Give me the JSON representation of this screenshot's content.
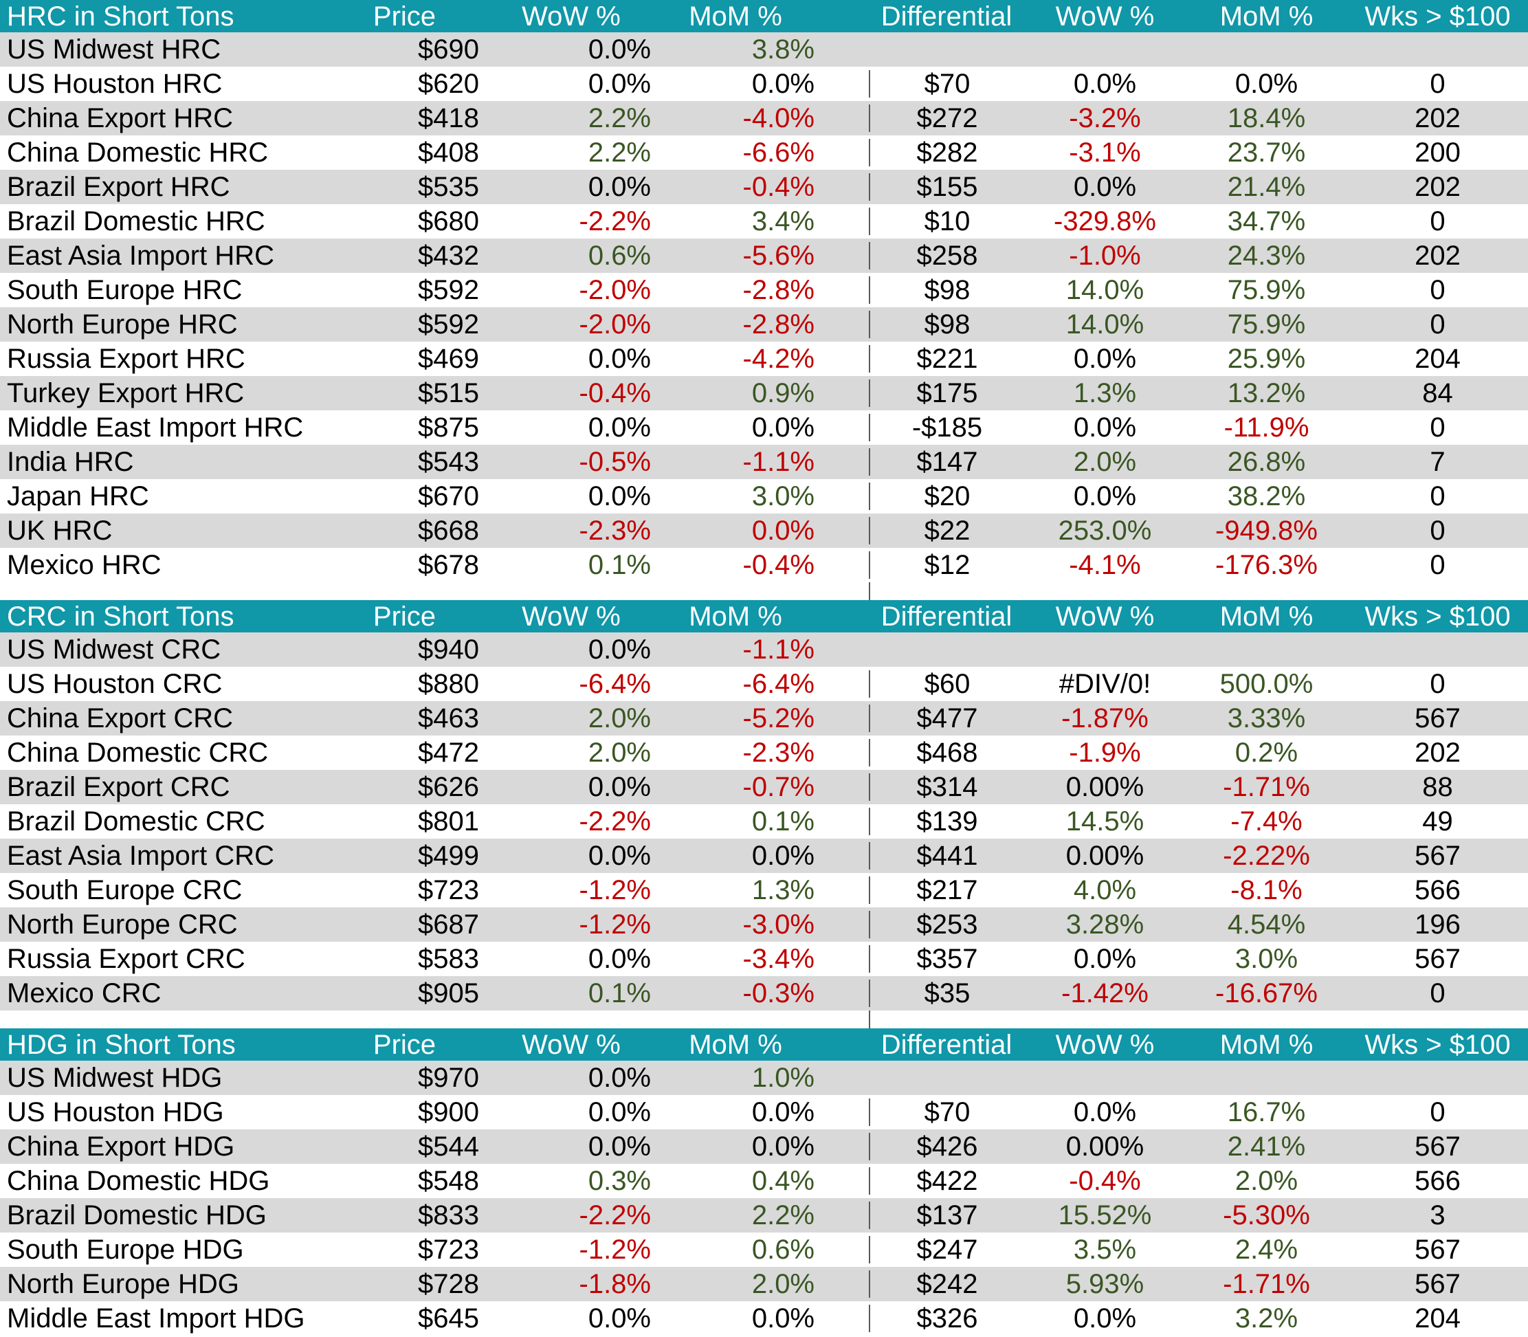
{
  "colors": {
    "header_bg": "#1097A8",
    "header_text": "#FFFFFF",
    "row_stripe": "#D9D9D9",
    "row_base": "#FFFFFF",
    "positive_text": "#3A5623",
    "negative_text": "#C00000",
    "neutral_text": "#000000",
    "divider_line": "#595959"
  },
  "columns": {
    "price": "Price",
    "wow": "WoW %",
    "mom": "MoM %",
    "diff": "Differential",
    "wow2": "WoW %",
    "mom2": "MoM %",
    "wks": "Wks > $100"
  },
  "tables": [
    {
      "title": "HRC in Short Tons",
      "rows": [
        [
          "US Midwest HRC",
          [
            "$690",
            "k"
          ],
          [
            "0.0%",
            "k"
          ],
          [
            "3.8%",
            "g"
          ],
          [
            "",
            ""
          ],
          [
            "",
            ""
          ],
          [
            "",
            ""
          ],
          [
            "",
            ""
          ]
        ],
        [
          "US Houston HRC",
          [
            "$620",
            "k"
          ],
          [
            "0.0%",
            "k"
          ],
          [
            "0.0%",
            "k"
          ],
          [
            "$70",
            "k"
          ],
          [
            "0.0%",
            "k"
          ],
          [
            "0.0%",
            "k"
          ],
          [
            "0",
            "k"
          ]
        ],
        [
          "China Export HRC",
          [
            "$418",
            "k"
          ],
          [
            "2.2%",
            "g"
          ],
          [
            "-4.0%",
            "r"
          ],
          [
            "$272",
            "k"
          ],
          [
            "-3.2%",
            "r"
          ],
          [
            "18.4%",
            "g"
          ],
          [
            "202",
            "k"
          ]
        ],
        [
          "China Domestic HRC",
          [
            "$408",
            "k"
          ],
          [
            "2.2%",
            "g"
          ],
          [
            "-6.6%",
            "r"
          ],
          [
            "$282",
            "k"
          ],
          [
            "-3.1%",
            "r"
          ],
          [
            "23.7%",
            "g"
          ],
          [
            "200",
            "k"
          ]
        ],
        [
          "Brazil Export HRC",
          [
            "$535",
            "k"
          ],
          [
            "0.0%",
            "k"
          ],
          [
            "-0.4%",
            "r"
          ],
          [
            "$155",
            "k"
          ],
          [
            "0.0%",
            "k"
          ],
          [
            "21.4%",
            "g"
          ],
          [
            "202",
            "k"
          ]
        ],
        [
          "Brazil Domestic HRC",
          [
            "$680",
            "k"
          ],
          [
            "-2.2%",
            "r"
          ],
          [
            "3.4%",
            "g"
          ],
          [
            "$10",
            "k"
          ],
          [
            "-329.8%",
            "r"
          ],
          [
            "34.7%",
            "g"
          ],
          [
            "0",
            "k"
          ]
        ],
        [
          "East Asia Import HRC",
          [
            "$432",
            "k"
          ],
          [
            "0.6%",
            "g"
          ],
          [
            "-5.6%",
            "r"
          ],
          [
            "$258",
            "k"
          ],
          [
            "-1.0%",
            "r"
          ],
          [
            "24.3%",
            "g"
          ],
          [
            "202",
            "k"
          ]
        ],
        [
          "South Europe HRC",
          [
            "$592",
            "k"
          ],
          [
            "-2.0%",
            "r"
          ],
          [
            "-2.8%",
            "r"
          ],
          [
            "$98",
            "k"
          ],
          [
            "14.0%",
            "g"
          ],
          [
            "75.9%",
            "g"
          ],
          [
            "0",
            "k"
          ]
        ],
        [
          "North Europe HRC",
          [
            "$592",
            "k"
          ],
          [
            "-2.0%",
            "r"
          ],
          [
            "-2.8%",
            "r"
          ],
          [
            "$98",
            "k"
          ],
          [
            "14.0%",
            "g"
          ],
          [
            "75.9%",
            "g"
          ],
          [
            "0",
            "k"
          ]
        ],
        [
          "Russia Export HRC",
          [
            "$469",
            "k"
          ],
          [
            "0.0%",
            "k"
          ],
          [
            "-4.2%",
            "r"
          ],
          [
            "$221",
            "k"
          ],
          [
            "0.0%",
            "k"
          ],
          [
            "25.9%",
            "g"
          ],
          [
            "204",
            "k"
          ]
        ],
        [
          "Turkey Export HRC",
          [
            "$515",
            "k"
          ],
          [
            "-0.4%",
            "r"
          ],
          [
            "0.9%",
            "g"
          ],
          [
            "$175",
            "k"
          ],
          [
            "1.3%",
            "g"
          ],
          [
            "13.2%",
            "g"
          ],
          [
            "84",
            "k"
          ]
        ],
        [
          "Middle East Import HRC",
          [
            "$875",
            "k"
          ],
          [
            "0.0%",
            "k"
          ],
          [
            "0.0%",
            "k"
          ],
          [
            "-$185",
            "k"
          ],
          [
            "0.0%",
            "k"
          ],
          [
            "-11.9%",
            "r"
          ],
          [
            "0",
            "k"
          ]
        ],
        [
          "India HRC",
          [
            "$543",
            "k"
          ],
          [
            "-0.5%",
            "r"
          ],
          [
            "-1.1%",
            "r"
          ],
          [
            "$147",
            "k"
          ],
          [
            "2.0%",
            "g"
          ],
          [
            "26.8%",
            "g"
          ],
          [
            "7",
            "k"
          ]
        ],
        [
          "Japan HRC",
          [
            "$670",
            "k"
          ],
          [
            "0.0%",
            "k"
          ],
          [
            "3.0%",
            "g"
          ],
          [
            "$20",
            "k"
          ],
          [
            "0.0%",
            "k"
          ],
          [
            "38.2%",
            "g"
          ],
          [
            "0",
            "k"
          ]
        ],
        [
          "UK HRC",
          [
            "$668",
            "k"
          ],
          [
            "-2.3%",
            "r"
          ],
          [
            "0.0%",
            "r"
          ],
          [
            "$22",
            "k"
          ],
          [
            "253.0%",
            "g"
          ],
          [
            "-949.8%",
            "r"
          ],
          [
            "0",
            "k"
          ]
        ],
        [
          "Mexico HRC",
          [
            "$678",
            "k"
          ],
          [
            "0.1%",
            "g"
          ],
          [
            "-0.4%",
            "r"
          ],
          [
            "$12",
            "k"
          ],
          [
            "-4.1%",
            "r"
          ],
          [
            "-176.3%",
            "r"
          ],
          [
            "0",
            "k"
          ]
        ]
      ]
    },
    {
      "title": "CRC in Short Tons",
      "rows": [
        [
          "US Midwest CRC",
          [
            "$940",
            "k"
          ],
          [
            "0.0%",
            "k"
          ],
          [
            "-1.1%",
            "r"
          ],
          [
            "",
            ""
          ],
          [
            "",
            ""
          ],
          [
            "",
            ""
          ],
          [
            "",
            ""
          ]
        ],
        [
          "US Houston CRC",
          [
            "$880",
            "k"
          ],
          [
            "-6.4%",
            "r"
          ],
          [
            "-6.4%",
            "r"
          ],
          [
            "$60",
            "k"
          ],
          [
            "#DIV/0!",
            "k"
          ],
          [
            "500.0%",
            "g"
          ],
          [
            "0",
            "k"
          ]
        ],
        [
          "China Export CRC",
          [
            "$463",
            "k"
          ],
          [
            "2.0%",
            "g"
          ],
          [
            "-5.2%",
            "r"
          ],
          [
            "$477",
            "k"
          ],
          [
            "-1.87%",
            "r"
          ],
          [
            "3.33%",
            "g"
          ],
          [
            "567",
            "k"
          ]
        ],
        [
          "China Domestic CRC",
          [
            "$472",
            "k"
          ],
          [
            "2.0%",
            "g"
          ],
          [
            "-2.3%",
            "r"
          ],
          [
            "$468",
            "k"
          ],
          [
            "-1.9%",
            "r"
          ],
          [
            "0.2%",
            "g"
          ],
          [
            "202",
            "k"
          ]
        ],
        [
          "Brazil Export CRC",
          [
            "$626",
            "k"
          ],
          [
            "0.0%",
            "k"
          ],
          [
            "-0.7%",
            "r"
          ],
          [
            "$314",
            "k"
          ],
          [
            "0.00%",
            "k"
          ],
          [
            "-1.71%",
            "r"
          ],
          [
            "88",
            "k"
          ]
        ],
        [
          "Brazil Domestic CRC",
          [
            "$801",
            "k"
          ],
          [
            "-2.2%",
            "r"
          ],
          [
            "0.1%",
            "g"
          ],
          [
            "$139",
            "k"
          ],
          [
            "14.5%",
            "g"
          ],
          [
            "-7.4%",
            "r"
          ],
          [
            "49",
            "k"
          ]
        ],
        [
          "East Asia Import CRC",
          [
            "$499",
            "k"
          ],
          [
            "0.0%",
            "k"
          ],
          [
            "0.0%",
            "k"
          ],
          [
            "$441",
            "k"
          ],
          [
            "0.00%",
            "k"
          ],
          [
            "-2.22%",
            "r"
          ],
          [
            "567",
            "k"
          ]
        ],
        [
          "South Europe CRC",
          [
            "$723",
            "k"
          ],
          [
            "-1.2%",
            "r"
          ],
          [
            "1.3%",
            "g"
          ],
          [
            "$217",
            "k"
          ],
          [
            "4.0%",
            "g"
          ],
          [
            "-8.1%",
            "r"
          ],
          [
            "566",
            "k"
          ]
        ],
        [
          "North Europe CRC",
          [
            "$687",
            "k"
          ],
          [
            "-1.2%",
            "r"
          ],
          [
            "-3.0%",
            "r"
          ],
          [
            "$253",
            "k"
          ],
          [
            "3.28%",
            "g"
          ],
          [
            "4.54%",
            "g"
          ],
          [
            "196",
            "k"
          ]
        ],
        [
          "Russia Export CRC",
          [
            "$583",
            "k"
          ],
          [
            "0.0%",
            "k"
          ],
          [
            "-3.4%",
            "r"
          ],
          [
            "$357",
            "k"
          ],
          [
            "0.0%",
            "k"
          ],
          [
            "3.0%",
            "g"
          ],
          [
            "567",
            "k"
          ]
        ],
        [
          "Mexico CRC",
          [
            "$905",
            "k"
          ],
          [
            "0.1%",
            "g"
          ],
          [
            "-0.3%",
            "r"
          ],
          [
            "$35",
            "k"
          ],
          [
            "-1.42%",
            "r"
          ],
          [
            "-16.67%",
            "r"
          ],
          [
            "0",
            "k"
          ]
        ]
      ]
    },
    {
      "title": "HDG in Short Tons",
      "rows": [
        [
          "US Midwest HDG",
          [
            "$970",
            "k"
          ],
          [
            "0.0%",
            "k"
          ],
          [
            "1.0%",
            "g"
          ],
          [
            "",
            ""
          ],
          [
            "",
            ""
          ],
          [
            "",
            ""
          ],
          [
            "",
            ""
          ]
        ],
        [
          "US Houston HDG",
          [
            "$900",
            "k"
          ],
          [
            "0.0%",
            "k"
          ],
          [
            "0.0%",
            "k"
          ],
          [
            "$70",
            "k"
          ],
          [
            "0.0%",
            "k"
          ],
          [
            "16.7%",
            "g"
          ],
          [
            "0",
            "k"
          ]
        ],
        [
          "China Export HDG",
          [
            "$544",
            "k"
          ],
          [
            "0.0%",
            "k"
          ],
          [
            "0.0%",
            "k"
          ],
          [
            "$426",
            "k"
          ],
          [
            "0.00%",
            "k"
          ],
          [
            "2.41%",
            "g"
          ],
          [
            "567",
            "k"
          ]
        ],
        [
          "China Domestic HDG",
          [
            "$548",
            "k"
          ],
          [
            "0.3%",
            "g"
          ],
          [
            "0.4%",
            "g"
          ],
          [
            "$422",
            "k"
          ],
          [
            "-0.4%",
            "r"
          ],
          [
            "2.0%",
            "g"
          ],
          [
            "566",
            "k"
          ]
        ],
        [
          "Brazil Domestic HDG",
          [
            "$833",
            "k"
          ],
          [
            "-2.2%",
            "r"
          ],
          [
            "2.2%",
            "g"
          ],
          [
            "$137",
            "k"
          ],
          [
            "15.52%",
            "g"
          ],
          [
            "-5.30%",
            "r"
          ],
          [
            "3",
            "k"
          ]
        ],
        [
          "South Europe HDG",
          [
            "$723",
            "k"
          ],
          [
            "-1.2%",
            "r"
          ],
          [
            "0.6%",
            "g"
          ],
          [
            "$247",
            "k"
          ],
          [
            "3.5%",
            "g"
          ],
          [
            "2.4%",
            "g"
          ],
          [
            "567",
            "k"
          ]
        ],
        [
          "North Europe HDG",
          [
            "$728",
            "k"
          ],
          [
            "-1.8%",
            "r"
          ],
          [
            "2.0%",
            "g"
          ],
          [
            "$242",
            "k"
          ],
          [
            "5.93%",
            "g"
          ],
          [
            "-1.71%",
            "r"
          ],
          [
            "567",
            "k"
          ]
        ],
        [
          "Middle East Import HDG",
          [
            "$645",
            "k"
          ],
          [
            "0.0%",
            "k"
          ],
          [
            "0.0%",
            "k"
          ],
          [
            "$326",
            "k"
          ],
          [
            "0.0%",
            "k"
          ],
          [
            "3.2%",
            "g"
          ],
          [
            "204",
            "k"
          ]
        ]
      ]
    }
  ]
}
